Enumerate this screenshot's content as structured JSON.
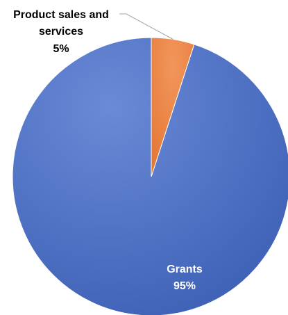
{
  "chart_data": {
    "type": "pie",
    "title": "",
    "series": [
      {
        "values": [
          95,
          5
        ],
        "labels": [
          "Grants",
          "Product sales and services"
        ]
      }
    ],
    "slices": [
      {
        "label_lines": [
          "Grants"
        ],
        "percent_text": "95%",
        "value": 95,
        "color": "#4F73C5"
      },
      {
        "label_lines": [
          "Product sales and",
          "services"
        ],
        "percent_text": "5%",
        "value": 5,
        "color": "#EA8243"
      }
    ],
    "start_angle_deg": 0,
    "direction": "counterclockwise",
    "legend": "none",
    "data_labels": "shown",
    "leader_line": true,
    "label_color_inside": "#ffffff",
    "label_color_outside": "#000000"
  }
}
